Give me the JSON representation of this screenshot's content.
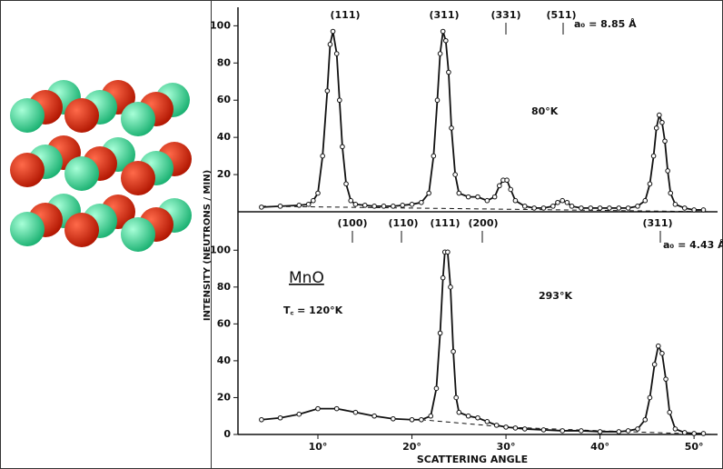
{
  "chart_data": [
    {
      "type": "line",
      "title": "80°K",
      "annotations": [
        "(111)",
        "(311)",
        "(331)",
        "(511)",
        "a₀ = 8.85 Å"
      ],
      "x": [
        4,
        6,
        8,
        9,
        9.5,
        10,
        10.5,
        11,
        11.3,
        11.6,
        12,
        12.3,
        12.6,
        13,
        13.5,
        14,
        15,
        16,
        17,
        18,
        19,
        20,
        21,
        21.8,
        22.3,
        22.7,
        23,
        23.3,
        23.6,
        23.9,
        24.2,
        24.6,
        25,
        26,
        27,
        28,
        28.8,
        29.3,
        29.7,
        30.1,
        30.5,
        31,
        32,
        33,
        34,
        35,
        35.5,
        36,
        36.5,
        37,
        38,
        39,
        40,
        41,
        42,
        43,
        44,
        44.8,
        45.3,
        45.7,
        46,
        46.3,
        46.6,
        46.9,
        47.2,
        47.5,
        48,
        49,
        50,
        51
      ],
      "series": [
        {
          "color": "#111111",
          "values": [
            2.5,
            3,
            3.5,
            4,
            6,
            10,
            30,
            65,
            90,
            97,
            85,
            60,
            35,
            15,
            6,
            4,
            3.5,
            3,
            3,
            3,
            3.5,
            4,
            5,
            10,
            30,
            60,
            85,
            97,
            92,
            75,
            45,
            20,
            10,
            8,
            8,
            6,
            8,
            14,
            17,
            17,
            12,
            6,
            3,
            2,
            2,
            3,
            5,
            6,
            5,
            3,
            2,
            2,
            2,
            2,
            2,
            2,
            3,
            6,
            15,
            30,
            45,
            52,
            48,
            38,
            22,
            10,
            4,
            2,
            1,
            1
          ]
        }
      ],
      "baseline": {
        "x": [
          4,
          52
        ],
        "values": [
          3,
          0
        ]
      },
      "xlim": [
        1.5,
        52.5
      ],
      "ylim": [
        0,
        108
      ],
      "yticks": [
        20,
        40,
        60,
        80,
        100
      ]
    },
    {
      "type": "line",
      "title": "293°K",
      "annotations": [
        "(100)",
        "(110)",
        "(111)",
        "(200)",
        "(311)",
        "a₀ = 4.43 Å",
        "MnO",
        "T꜀ = 120°K"
      ],
      "x_label": "SCATTERING ANGLE",
      "y_label": "INTENSITY (NEUTRONS / MIN)",
      "x": [
        4,
        6,
        8,
        10,
        12,
        14,
        16,
        18,
        20,
        21,
        22,
        22.6,
        23,
        23.3,
        23.5,
        23.8,
        24.1,
        24.4,
        24.7,
        25,
        26,
        27,
        28,
        29,
        30,
        31,
        32,
        34,
        36,
        38,
        40,
        42,
        43,
        44,
        44.8,
        45.3,
        45.8,
        46.2,
        46.6,
        47,
        47.4,
        48,
        49,
        50,
        51
      ],
      "series": [
        {
          "color": "#111111",
          "values": [
            8,
            9,
            11,
            14,
            14,
            12,
            10,
            8.5,
            8,
            8,
            10,
            25,
            55,
            85,
            99,
            99,
            80,
            45,
            20,
            12,
            10,
            9,
            7,
            5,
            4,
            3.5,
            3,
            2.5,
            2,
            2,
            1.5,
            1.5,
            2,
            3,
            8,
            20,
            38,
            48,
            44,
            30,
            12,
            3,
            1,
            0.5,
            0.5
          ]
        }
      ],
      "baseline": {
        "x": [
          21,
          30,
          40,
          52
        ],
        "values": [
          8,
          4,
          2,
          0
        ]
      },
      "xlim": [
        1.5,
        52.5
      ],
      "ylim": [
        0,
        110
      ],
      "yticks": [
        0,
        20,
        40,
        60,
        80,
        100
      ],
      "xticks": [
        {
          "value": 10,
          "label": "10°"
        },
        {
          "value": 20,
          "label": "20°"
        },
        {
          "value": 30,
          "label": "30°"
        },
        {
          "value": 40,
          "label": "40°"
        },
        {
          "value": 50,
          "label": "50°"
        }
      ]
    }
  ]
}
